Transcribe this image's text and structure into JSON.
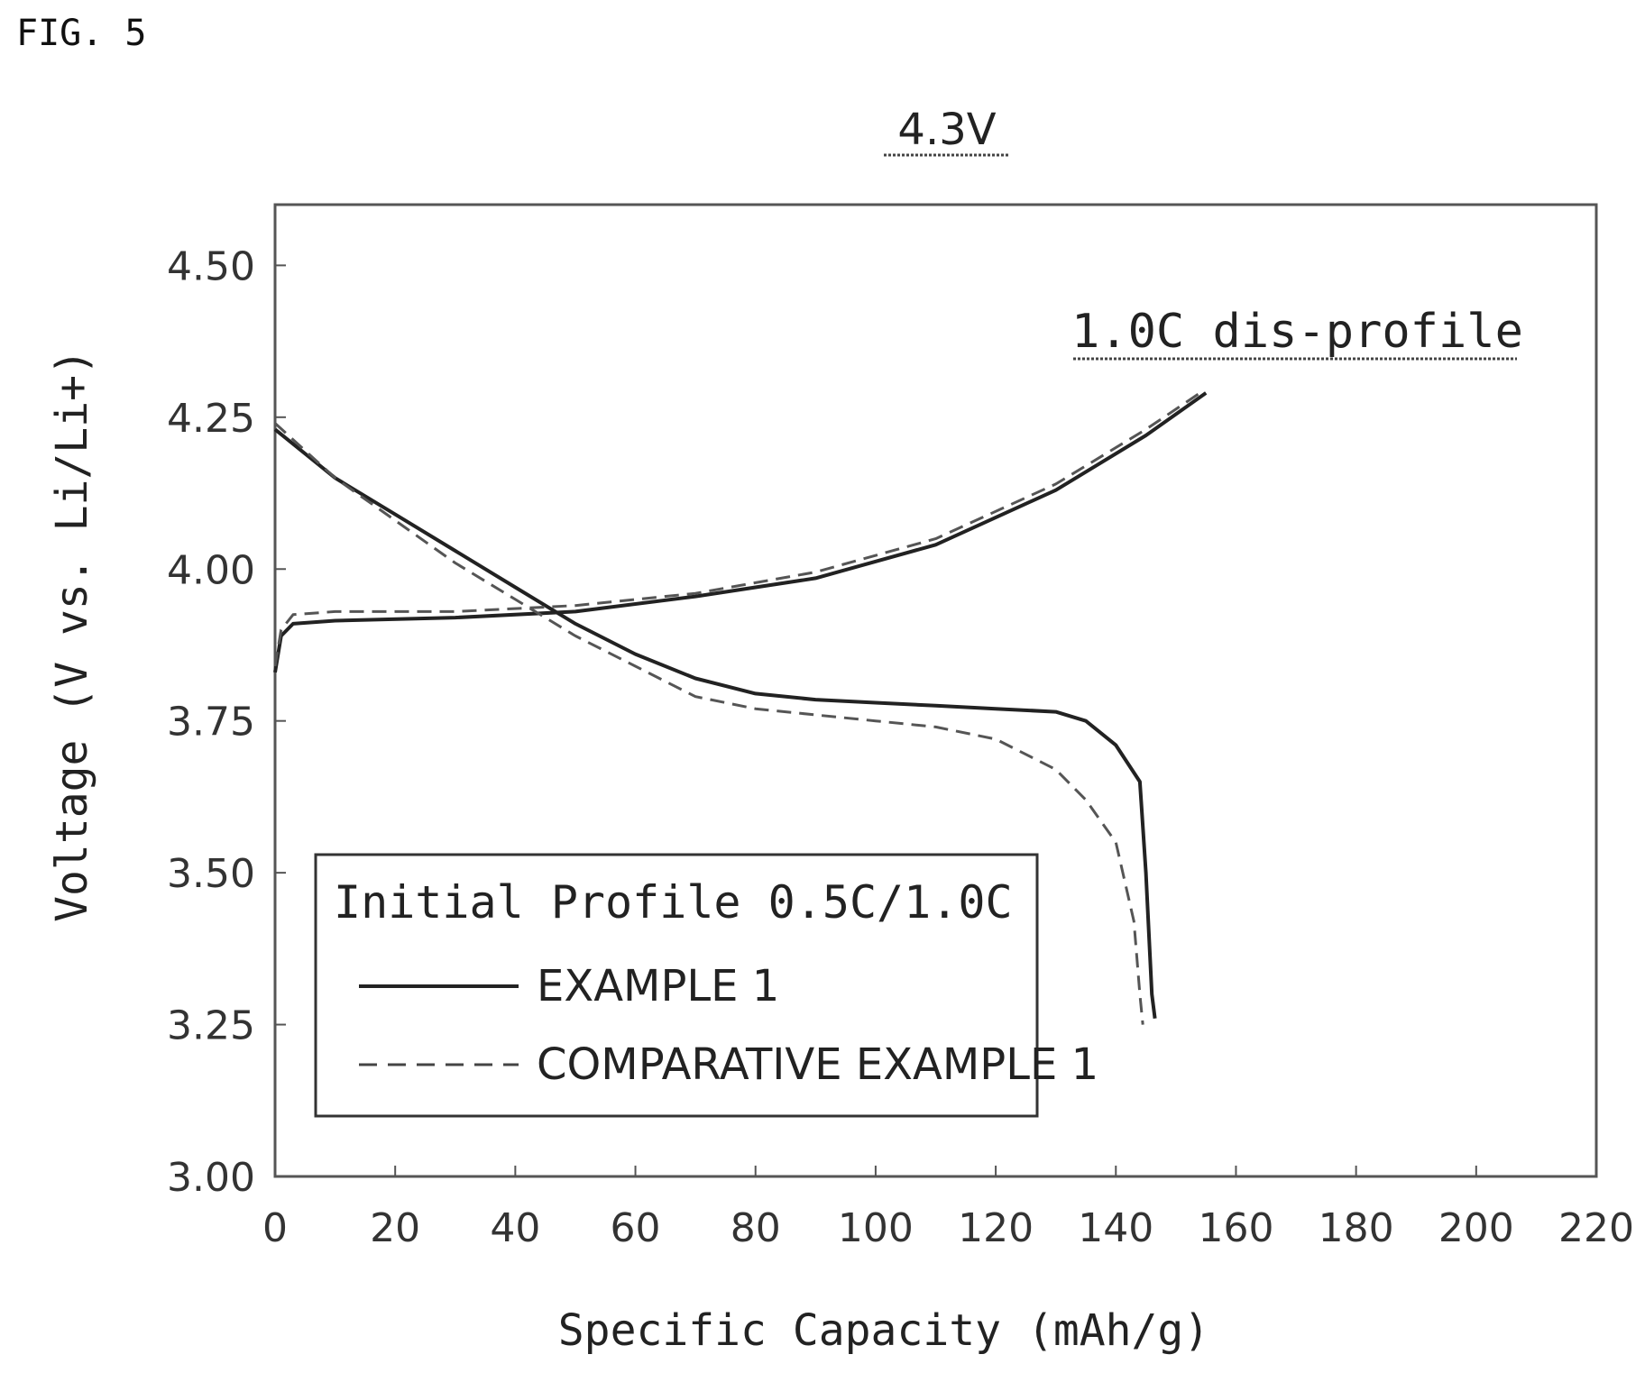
{
  "figure_label": "FIG. 5",
  "chart_data": {
    "type": "line",
    "title": "4.3V",
    "annotation": "1.0C dis-profile",
    "xlabel": "Specific Capacity (mAh/g)",
    "ylabel": "Voltage (V vs. Li/Li+)",
    "xlim": [
      0,
      220
    ],
    "ylim": [
      3.0,
      4.6
    ],
    "xticks": [
      "0",
      "20",
      "40",
      "60",
      "80",
      "100",
      "120",
      "140",
      "160",
      "180",
      "200",
      "220"
    ],
    "yticks": [
      "3.00",
      "3.25",
      "3.50",
      "3.75",
      "4.00",
      "4.25",
      "4.50"
    ],
    "grid": false,
    "legend": {
      "title": "Initial Profile 0.5C/1.0C",
      "placement": "bottom-left",
      "entries": [
        "EXAMPLE 1",
        "COMPARATIVE EXAMPLE 1"
      ]
    },
    "series": [
      {
        "name": "EXAMPLE 1",
        "style": "solid",
        "curves": [
          {
            "label": "charge",
            "points": [
              [
                0,
                3.83
              ],
              [
                1,
                3.89
              ],
              [
                3,
                3.91
              ],
              [
                10,
                3.915
              ],
              [
                30,
                3.92
              ],
              [
                50,
                3.93
              ],
              [
                70,
                3.955
              ],
              [
                90,
                3.985
              ],
              [
                110,
                4.04
              ],
              [
                130,
                4.13
              ],
              [
                145,
                4.22
              ],
              [
                155,
                4.29
              ]
            ]
          },
          {
            "label": "discharge",
            "points": [
              [
                0,
                4.23
              ],
              [
                10,
                4.15
              ],
              [
                20,
                4.09
              ],
              [
                30,
                4.03
              ],
              [
                40,
                3.97
              ],
              [
                50,
                3.91
              ],
              [
                60,
                3.86
              ],
              [
                70,
                3.82
              ],
              [
                80,
                3.795
              ],
              [
                90,
                3.785
              ],
              [
                100,
                3.78
              ],
              [
                110,
                3.775
              ],
              [
                120,
                3.77
              ],
              [
                130,
                3.765
              ],
              [
                135,
                3.75
              ],
              [
                140,
                3.71
              ],
              [
                144,
                3.65
              ],
              [
                145,
                3.5
              ],
              [
                146,
                3.3
              ],
              [
                146.5,
                3.26
              ]
            ]
          }
        ]
      },
      {
        "name": "COMPARATIVE EXAMPLE 1",
        "style": "dashed",
        "curves": [
          {
            "label": "charge",
            "points": [
              [
                0,
                3.84
              ],
              [
                1,
                3.9
              ],
              [
                3,
                3.925
              ],
              [
                10,
                3.93
              ],
              [
                30,
                3.93
              ],
              [
                50,
                3.94
              ],
              [
                70,
                3.96
              ],
              [
                90,
                3.995
              ],
              [
                110,
                4.05
              ],
              [
                130,
                4.14
              ],
              [
                145,
                4.23
              ],
              [
                154,
                4.29
              ]
            ]
          },
          {
            "label": "discharge",
            "points": [
              [
                0,
                4.24
              ],
              [
                10,
                4.15
              ],
              [
                20,
                4.08
              ],
              [
                30,
                4.01
              ],
              [
                40,
                3.95
              ],
              [
                50,
                3.89
              ],
              [
                60,
                3.84
              ],
              [
                70,
                3.79
              ],
              [
                80,
                3.77
              ],
              [
                90,
                3.76
              ],
              [
                100,
                3.75
              ],
              [
                110,
                3.74
              ],
              [
                120,
                3.72
              ],
              [
                130,
                3.67
              ],
              [
                135,
                3.62
              ],
              [
                140,
                3.55
              ],
              [
                143,
                3.42
              ],
              [
                144,
                3.3
              ],
              [
                144.5,
                3.25
              ]
            ]
          }
        ]
      }
    ]
  }
}
